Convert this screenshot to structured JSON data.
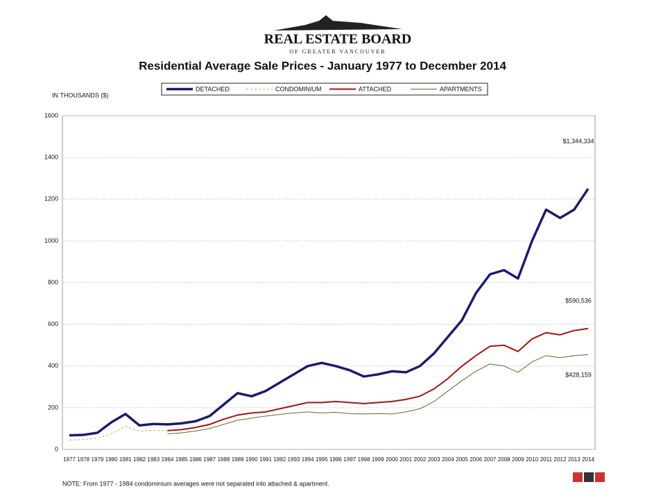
{
  "header": {
    "logo_title": "REAL ESTATE BOARD",
    "logo_subtitle": "OF GREATER VANCOUVER"
  },
  "chart_data": {
    "type": "line",
    "title": "Residential Average Sale Prices  -  January 1977 to December 2014",
    "y_axis_label": "IN THOUSANDS ($)",
    "categories": [
      "1977",
      "1978",
      "1979",
      "1980",
      "1981",
      "1982",
      "1983",
      "1984",
      "1985",
      "1986",
      "1987",
      "1988",
      "1989",
      "1990",
      "1991",
      "1992",
      "1993",
      "1994",
      "1995",
      "1996",
      "1997",
      "1998",
      "1999",
      "2000",
      "2001",
      "2002",
      "2003",
      "2004",
      "2005",
      "2006",
      "2007",
      "2008",
      "2009",
      "2010",
      "2011",
      "2012",
      "2013",
      "2014"
    ],
    "series": [
      {
        "name": "DETACHED",
        "color": "#1b1b6b",
        "values": [
          68,
          70,
          80,
          130,
          170,
          115,
          122,
          120,
          125,
          135,
          160,
          215,
          270,
          255,
          280,
          320,
          360,
          400,
          415,
          400,
          380,
          350,
          360,
          375,
          370,
          400,
          460,
          540,
          620,
          750,
          840,
          860,
          820,
          1000,
          1150,
          1110,
          1150,
          1250
        ]
      },
      {
        "name": "CONDOMINIUM",
        "color": "#c9a84e",
        "values": [
          45,
          48,
          55,
          75,
          110,
          88,
          92,
          90,
          null,
          null,
          null,
          null,
          null,
          null,
          null,
          null,
          null,
          null,
          null,
          null,
          null,
          null,
          null,
          null,
          null,
          null,
          null,
          null,
          null,
          null,
          null,
          null,
          null,
          null,
          null,
          null,
          null,
          null
        ]
      },
      {
        "name": "ATTACHED",
        "color": "#9e1414",
        "values": [
          null,
          null,
          null,
          null,
          null,
          null,
          null,
          90,
          95,
          105,
          120,
          145,
          165,
          175,
          180,
          195,
          210,
          225,
          225,
          230,
          225,
          220,
          225,
          230,
          240,
          255,
          290,
          340,
          400,
          450,
          495,
          500,
          470,
          530,
          560,
          550,
          570,
          580
        ]
      },
      {
        "name": "APARTMENTS",
        "color": "#5a6a32",
        "values": [
          null,
          null,
          null,
          null,
          null,
          null,
          null,
          75,
          80,
          88,
          100,
          120,
          140,
          150,
          160,
          168,
          175,
          180,
          175,
          178,
          172,
          170,
          172,
          170,
          180,
          195,
          230,
          280,
          330,
          375,
          410,
          400,
          370,
          420,
          450,
          440,
          450,
          455
        ]
      }
    ],
    "annotations": [
      "$1,344,334",
      "$590,536",
      "$428,159"
    ],
    "ylim": [
      0,
      1600
    ],
    "yticks": [
      0,
      200,
      400,
      600,
      800,
      1000,
      1200,
      1400,
      1600
    ],
    "grid": true,
    "note": "NOTE:  From 1977 - 1984 condominium averages were not separated into attached & apartment."
  }
}
